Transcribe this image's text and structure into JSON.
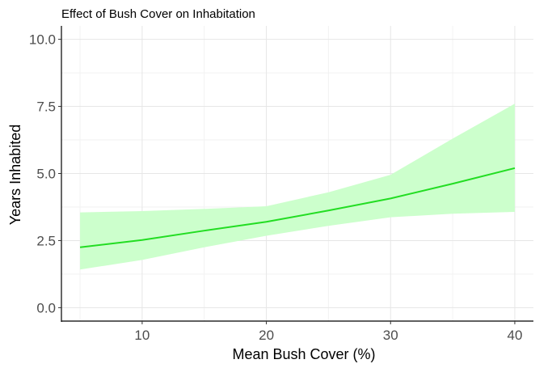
{
  "chart_data": {
    "type": "line",
    "title": "Effect of Bush Cover on Inhabitation",
    "xlabel": "Mean Bush Cover (%)",
    "ylabel": "Years Inhabited",
    "xlim": [
      3.5,
      41.5
    ],
    "ylim": [
      -0.5,
      10.5
    ],
    "x_ticks": [
      10,
      20,
      30,
      40
    ],
    "x_tick_labels": [
      "10",
      "20",
      "30",
      "40"
    ],
    "y_ticks": [
      0,
      2.5,
      5,
      7.5,
      10
    ],
    "y_tick_labels": [
      "0.0",
      "2.5",
      "5.0",
      "7.5",
      "10.0"
    ],
    "grid": true,
    "series": [
      {
        "x": [
          5,
          10,
          15,
          20,
          25,
          30,
          35,
          40
        ],
        "y": [
          2.25,
          2.52,
          2.87,
          3.2,
          3.62,
          4.07,
          4.62,
          5.2
        ],
        "lower": [
          1.42,
          1.78,
          2.25,
          2.68,
          3.05,
          3.37,
          3.5,
          3.57
        ],
        "upper": [
          3.55,
          3.6,
          3.68,
          3.78,
          4.3,
          4.95,
          6.3,
          7.6
        ],
        "color": "#22dd22",
        "ribbon_color": "#ccffcc"
      }
    ]
  }
}
